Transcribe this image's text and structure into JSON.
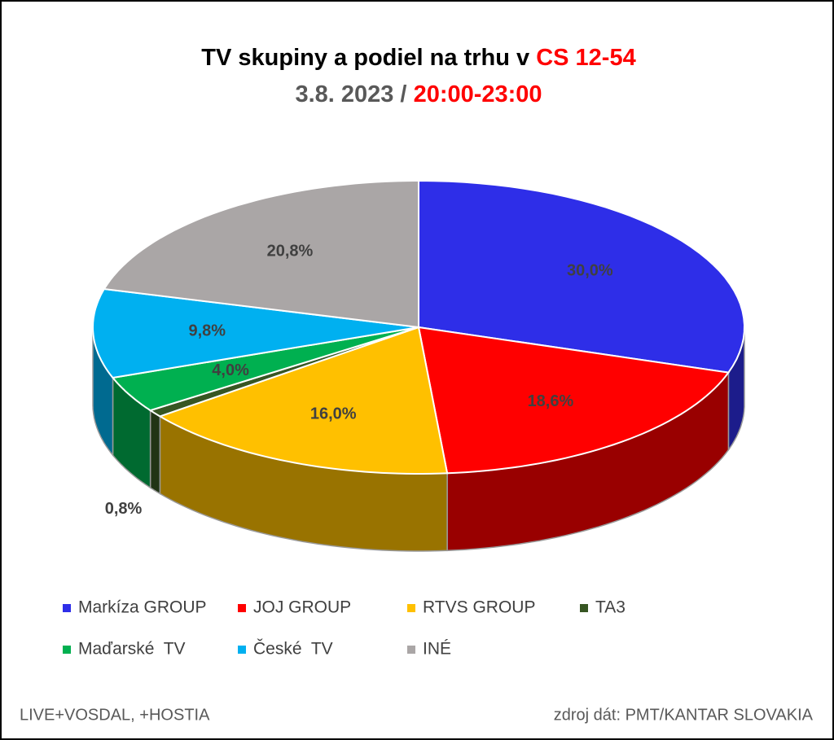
{
  "chart_data": {
    "type": "pie3d",
    "title": "TV skupiny a podiel na trhu v",
    "title_highlight": "CS 12-54",
    "subtitle": "3.8. 2023 /",
    "subtitle_highlight": "20:00-23:00",
    "highlight_color": "#ff0000",
    "categories": [
      "Markíza GROUP",
      "JOJ GROUP",
      "RTVS GROUP",
      "TA3",
      "Maďarské  TV",
      "České  TV",
      "INÉ"
    ],
    "values": [
      30.0,
      18.6,
      16.0,
      0.8,
      4.0,
      9.8,
      20.8
    ],
    "value_labels": [
      "30,0%",
      "18,6%",
      "16,0%",
      "0,8%",
      "4,0%",
      "9,8%",
      "20,8%"
    ],
    "colors": [
      "#2e2ee8",
      "#ff0000",
      "#ffc000",
      "#375623",
      "#00b050",
      "#00b0f0",
      "#aaa6a6"
    ],
    "legend": "bottom",
    "footnote_left": "LIVE+VOSDAL, +HOSTIA",
    "footnote_right": "zdroj dát: PMT/KANTAR SLOVAKIA"
  }
}
